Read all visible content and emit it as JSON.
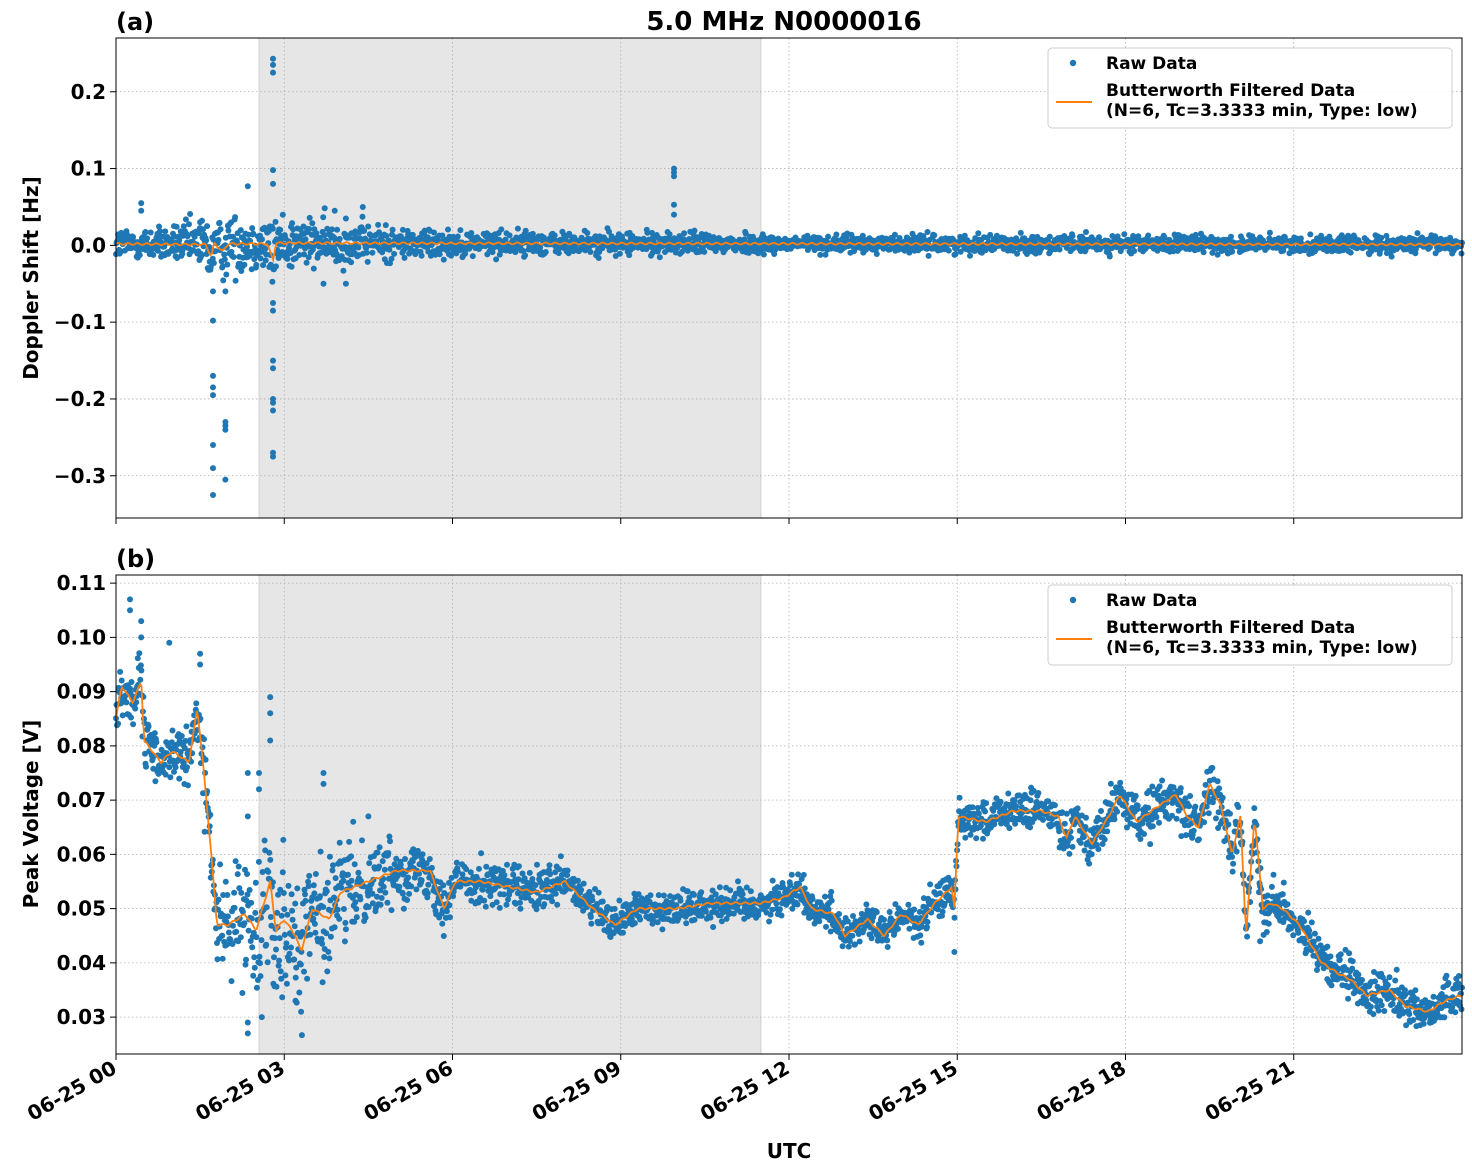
{
  "figure": {
    "suptitle": "5.0 MHz N0000016",
    "xlabel": "UTC"
  },
  "colors": {
    "raw": "#1f77b4",
    "filtered": "#ff7f0e",
    "shade": "#e6e6e6",
    "grid": "#b0b0b0"
  },
  "chart_data": [
    {
      "type": "scatter",
      "panel_label": "(a)",
      "ylabel": "Doppler Shift [Hz]",
      "xlim": [
        "06-25 00:00",
        "06-26 00:00"
      ],
      "ylim": [
        -0.355,
        0.27
      ],
      "yticks": [
        -0.3,
        -0.2,
        -0.1,
        0.0,
        0.1,
        0.2
      ],
      "ytick_labels": [
        "−0.3",
        "−0.2",
        "−0.1",
        "0.0",
        "0.1",
        "0.2"
      ],
      "xticks": [
        "06-25 00",
        "06-25 03",
        "06-25 06",
        "06-25 09",
        "06-25 12",
        "06-25 15",
        "06-25 18",
        "06-25 21"
      ],
      "xtick_hours": [
        0,
        3,
        6,
        9,
        12,
        15,
        18,
        21
      ],
      "grid": true,
      "legend_position": "top-right",
      "shaded_span_hours": [
        2.55,
        11.5
      ],
      "series": [
        {
          "name": "Raw Data",
          "style": "points",
          "band": [
            [
              0,
              0.018
            ],
            [
              1,
              0.02
            ],
            [
              1.5,
              0.03
            ],
            [
              2,
              0.035
            ],
            [
              2.5,
              0.03
            ],
            [
              2.8,
              0.04
            ],
            [
              3.2,
              0.03
            ],
            [
              4,
              0.025
            ],
            [
              5,
              0.02
            ],
            [
              6,
              0.015
            ],
            [
              9,
              0.013
            ],
            [
              11.5,
              0.012
            ],
            [
              12,
              0.01
            ],
            [
              24,
              0.01
            ]
          ],
          "outliers": [
            [
              0.45,
              0.055
            ],
            [
              0.45,
              0.045
            ],
            [
              1.5,
              0.03
            ],
            [
              1.73,
              -0.325
            ],
            [
              1.73,
              -0.29
            ],
            [
              1.73,
              -0.26
            ],
            [
              1.73,
              -0.195
            ],
            [
              1.73,
              -0.185
            ],
            [
              1.73,
              -0.17
            ],
            [
              1.73,
              -0.098
            ],
            [
              1.73,
              -0.06
            ],
            [
              1.95,
              -0.305
            ],
            [
              1.95,
              -0.24
            ],
            [
              1.95,
              -0.235
            ],
            [
              1.95,
              -0.23
            ],
            [
              1.95,
              -0.06
            ],
            [
              2.35,
              0.077
            ],
            [
              2.8,
              0.243
            ],
            [
              2.8,
              0.235
            ],
            [
              2.8,
              0.225
            ],
            [
              2.8,
              0.098
            ],
            [
              2.8,
              0.08
            ],
            [
              2.8,
              -0.075
            ],
            [
              2.8,
              -0.085
            ],
            [
              2.8,
              -0.15
            ],
            [
              2.8,
              -0.16
            ],
            [
              2.8,
              -0.2
            ],
            [
              2.8,
              -0.205
            ],
            [
              2.8,
              -0.215
            ],
            [
              2.8,
              -0.27
            ],
            [
              2.8,
              -0.275
            ],
            [
              3.7,
              -0.05
            ],
            [
              4.1,
              -0.05
            ],
            [
              3.9,
              0.045
            ],
            [
              4.1,
              0.035
            ],
            [
              4.4,
              0.05
            ],
            [
              9.95,
              0.1
            ],
            [
              9.95,
              0.095
            ],
            [
              9.95,
              0.09
            ],
            [
              9.95,
              0.053
            ],
            [
              9.95,
              0.04
            ]
          ]
        },
        {
          "name": "Butterworth Filtered Data\n(N=6, Tc=3.3333 min, Type: low)",
          "style": "line",
          "points": [
            [
              0,
              0.002
            ],
            [
              1.6,
              0.001
            ],
            [
              1.7,
              -0.015
            ],
            [
              1.75,
              0.003
            ],
            [
              1.9,
              -0.008
            ],
            [
              2,
              0.002
            ],
            [
              2.7,
              0.002
            ],
            [
              2.8,
              -0.02
            ],
            [
              2.85,
              0.003
            ],
            [
              24,
              0.001
            ]
          ]
        }
      ]
    },
    {
      "type": "scatter",
      "panel_label": "(b)",
      "ylabel": "Peak Voltage [V]",
      "xlim": [
        "06-25 00:00",
        "06-26 00:00"
      ],
      "ylim": [
        0.0232,
        0.1115
      ],
      "yticks": [
        0.03,
        0.04,
        0.05,
        0.06,
        0.07,
        0.08,
        0.09,
        0.1,
        0.11
      ],
      "ytick_labels": [
        "0.03",
        "0.04",
        "0.05",
        "0.06",
        "0.07",
        "0.08",
        "0.09",
        "0.10",
        "0.11"
      ],
      "xticks": [
        "06-25 00",
        "06-25 03",
        "06-25 06",
        "06-25 09",
        "06-25 12",
        "06-25 15",
        "06-25 18",
        "06-25 21"
      ],
      "xtick_hours": [
        0,
        3,
        6,
        9,
        12,
        15,
        18,
        21
      ],
      "grid": true,
      "legend_position": "top-right",
      "shaded_span_hours": [
        2.55,
        11.5
      ],
      "series": [
        {
          "name": "Raw Data",
          "style": "points",
          "band": [
            [
              0,
              0.005
            ],
            [
              1,
              0.004
            ],
            [
              1.6,
              0.006
            ],
            [
              1.8,
              0.007
            ],
            [
              2.5,
              0.01
            ],
            [
              3,
              0.012
            ],
            [
              3.5,
              0.01
            ],
            [
              5,
              0.005
            ],
            [
              6,
              0.004
            ],
            [
              9,
              0.003
            ],
            [
              12,
              0.003
            ],
            [
              15,
              0.003
            ],
            [
              19,
              0.004
            ],
            [
              24,
              0.003
            ]
          ],
          "outliers": [
            [
              0.25,
              0.107
            ],
            [
              0.25,
              0.105
            ],
            [
              0.45,
              0.103
            ],
            [
              0.45,
              0.1
            ],
            [
              0.95,
              0.099
            ],
            [
              1.5,
              0.097
            ],
            [
              1.5,
              0.095
            ],
            [
              2.35,
              0.075
            ],
            [
              2.35,
              0.067
            ],
            [
              2.55,
              0.072
            ],
            [
              2.55,
              0.075
            ],
            [
              2.75,
              0.089
            ],
            [
              2.75,
              0.086
            ],
            [
              2.75,
              0.081
            ],
            [
              3.7,
              0.075
            ],
            [
              3.7,
              0.073
            ],
            [
              4.5,
              0.067
            ],
            [
              2.35,
              0.027
            ],
            [
              2.35,
              0.029
            ],
            [
              2.6,
              0.03
            ],
            [
              3.3,
              0.031
            ],
            [
              3.2,
              0.033
            ],
            [
              21.6,
              0.043
            ],
            [
              20.4,
              0.044
            ],
            [
              14.95,
              0.042
            ]
          ]
        },
        {
          "name": "Butterworth Filtered Data\n(N=6, Tc=3.3333 min, Type: low)",
          "style": "line",
          "points": [
            [
              0,
              0.085
            ],
            [
              0.1,
              0.091
            ],
            [
              0.3,
              0.088
            ],
            [
              0.45,
              0.092
            ],
            [
              0.5,
              0.081
            ],
            [
              0.8,
              0.077
            ],
            [
              1,
              0.079
            ],
            [
              1.3,
              0.077
            ],
            [
              1.45,
              0.087
            ],
            [
              1.55,
              0.077
            ],
            [
              1.7,
              0.06
            ],
            [
              1.8,
              0.047
            ],
            [
              2,
              0.047
            ],
            [
              2.3,
              0.049
            ],
            [
              2.5,
              0.046
            ],
            [
              2.75,
              0.055
            ],
            [
              2.85,
              0.046
            ],
            [
              3,
              0.048
            ],
            [
              3.2,
              0.045
            ],
            [
              3.3,
              0.042
            ],
            [
              3.5,
              0.05
            ],
            [
              3.8,
              0.048
            ],
            [
              4,
              0.053
            ],
            [
              4.5,
              0.055
            ],
            [
              5,
              0.057
            ],
            [
              5.6,
              0.057
            ],
            [
              5.85,
              0.05
            ],
            [
              6.05,
              0.055
            ],
            [
              6.5,
              0.055
            ],
            [
              7,
              0.054
            ],
            [
              7.5,
              0.053
            ],
            [
              8,
              0.055
            ],
            [
              8.5,
              0.05
            ],
            [
              8.9,
              0.047
            ],
            [
              9.3,
              0.05
            ],
            [
              10,
              0.05
            ],
            [
              10.6,
              0.051
            ],
            [
              11,
              0.051
            ],
            [
              11.5,
              0.051
            ],
            [
              11.9,
              0.052
            ],
            [
              12.2,
              0.054
            ],
            [
              12.4,
              0.05
            ],
            [
              12.8,
              0.049
            ],
            [
              13,
              0.045
            ],
            [
              13.4,
              0.048
            ],
            [
              13.7,
              0.045
            ],
            [
              14,
              0.049
            ],
            [
              14.3,
              0.047
            ],
            [
              14.6,
              0.051
            ],
            [
              14.9,
              0.054
            ],
            [
              14.95,
              0.05
            ],
            [
              15.02,
              0.067
            ],
            [
              15.5,
              0.066
            ],
            [
              16,
              0.068
            ],
            [
              16.5,
              0.068
            ],
            [
              16.8,
              0.067
            ],
            [
              16.95,
              0.063
            ],
            [
              17.1,
              0.067
            ],
            [
              17.4,
              0.062
            ],
            [
              17.7,
              0.067
            ],
            [
              17.9,
              0.071
            ],
            [
              18.2,
              0.066
            ],
            [
              18.6,
              0.069
            ],
            [
              18.9,
              0.071
            ],
            [
              19.1,
              0.067
            ],
            [
              19.3,
              0.065
            ],
            [
              19.5,
              0.073
            ],
            [
              19.7,
              0.069
            ],
            [
              19.9,
              0.06
            ],
            [
              20.05,
              0.067
            ],
            [
              20.15,
              0.045
            ],
            [
              20.3,
              0.067
            ],
            [
              20.45,
              0.05
            ],
            [
              20.6,
              0.051
            ],
            [
              20.8,
              0.05
            ],
            [
              21.1,
              0.047
            ],
            [
              21.5,
              0.04
            ],
            [
              21.8,
              0.038
            ],
            [
              22,
              0.037
            ],
            [
              22.3,
              0.034
            ],
            [
              22.7,
              0.035
            ],
            [
              23,
              0.032
            ],
            [
              23.4,
              0.031
            ],
            [
              23.7,
              0.033
            ],
            [
              24,
              0.034
            ]
          ]
        }
      ]
    }
  ]
}
